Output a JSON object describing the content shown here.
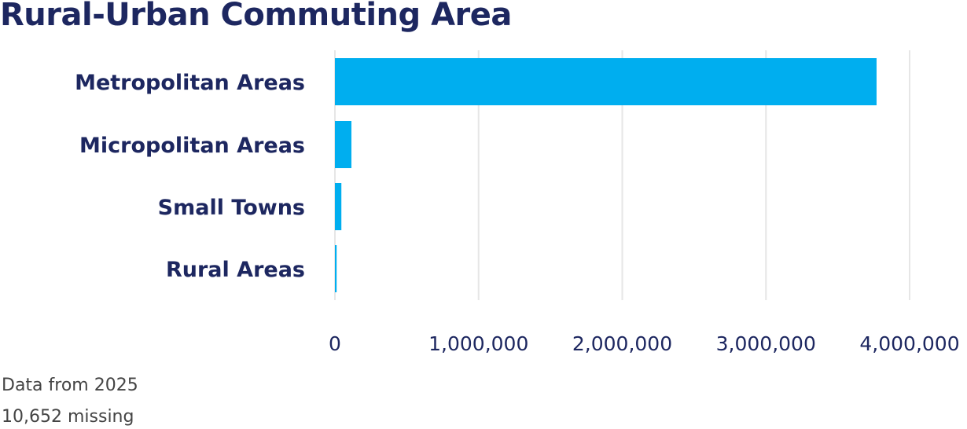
{
  "colors": {
    "bar": "#00aeef",
    "text": "#1d2760",
    "grid": "#e6e6e6",
    "note": "#444444"
  },
  "chart_data": {
    "type": "bar",
    "orientation": "horizontal",
    "title": "Rural-Urban Commuting Area",
    "categories": [
      "Metropolitan Areas",
      "Micropolitan Areas",
      "Small Towns",
      "Rural Areas"
    ],
    "values": [
      3770000,
      115000,
      45000,
      12000
    ],
    "xlim": [
      0,
      4000000
    ],
    "xticks": [
      0,
      1000000,
      2000000,
      3000000,
      4000000
    ],
    "xtick_labels": [
      "0",
      "1,000,000",
      "2,000,000",
      "3,000,000",
      "4,000,000"
    ],
    "grid": "vertical",
    "xlabel": "",
    "ylabel": ""
  },
  "notes": {
    "year": "Data from 2025",
    "missing": "10,652 missing"
  }
}
